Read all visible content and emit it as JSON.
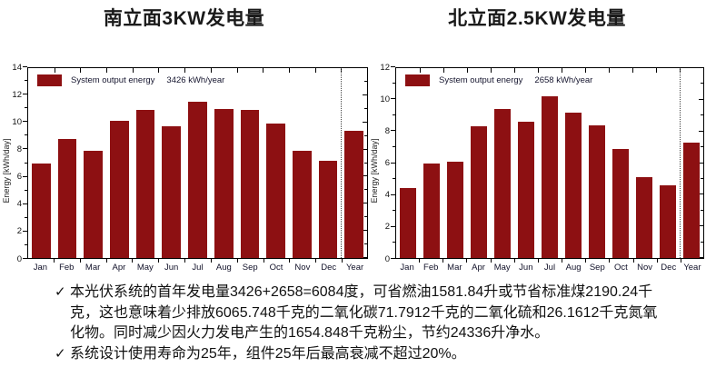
{
  "chart_data": [
    {
      "type": "bar",
      "title": "南立面3KW发电量",
      "legend_label": "System output energy",
      "legend_value": "3426 kWh/year",
      "ylabel": "Energy [kWh/day]",
      "ylim": [
        0,
        14
      ],
      "ytick_step": 2,
      "grid": false,
      "legend_position": "top-left-inside",
      "categories": [
        "Jan",
        "Feb",
        "Mar",
        "Apr",
        "May",
        "Jun",
        "Jul",
        "Aug",
        "Sep",
        "Oct",
        "Nov",
        "Dec",
        "Year"
      ],
      "values": [
        7.0,
        8.8,
        7.9,
        10.1,
        10.9,
        9.7,
        11.5,
        11.0,
        10.9,
        9.9,
        7.9,
        7.2,
        9.4
      ],
      "bar_color": "#8d1012",
      "separator_before_index": 12
    },
    {
      "type": "bar",
      "title": "北立面2.5KW发电量",
      "legend_label": "System output energy",
      "legend_value": "2658 kWh/year",
      "ylabel": "Energy [kWh/day]",
      "ylim": [
        0,
        12
      ],
      "ytick_step": 2,
      "grid": false,
      "legend_position": "top-left-inside",
      "categories": [
        "Jan",
        "Feb",
        "Mar",
        "Apr",
        "May",
        "Jun",
        "Jul",
        "Aug",
        "Sep",
        "Oct",
        "Nov",
        "Dec",
        "Year"
      ],
      "values": [
        4.4,
        6.0,
        6.1,
        8.3,
        9.4,
        8.6,
        10.2,
        9.2,
        8.4,
        6.9,
        5.1,
        4.6,
        7.3
      ],
      "bar_color": "#8d1012",
      "separator_before_index": 12
    }
  ],
  "notes": {
    "bullet_glyph": "✓",
    "items": [
      "本光伏系统的首年发电量3426+2658=6084度，可省燃油1581.84升或节省标准煤2190.24千克，这也意味着少排放6065.748千克的二氧化碳71.7912千克的二氧化硫和26.1612千克氮氧化物。同时减少因火力发电产生的1654.848千克粉尘，节约24336升净水。",
      "系统设计使用寿命为25年，组件25年后最高衰减不超过20%。"
    ]
  }
}
